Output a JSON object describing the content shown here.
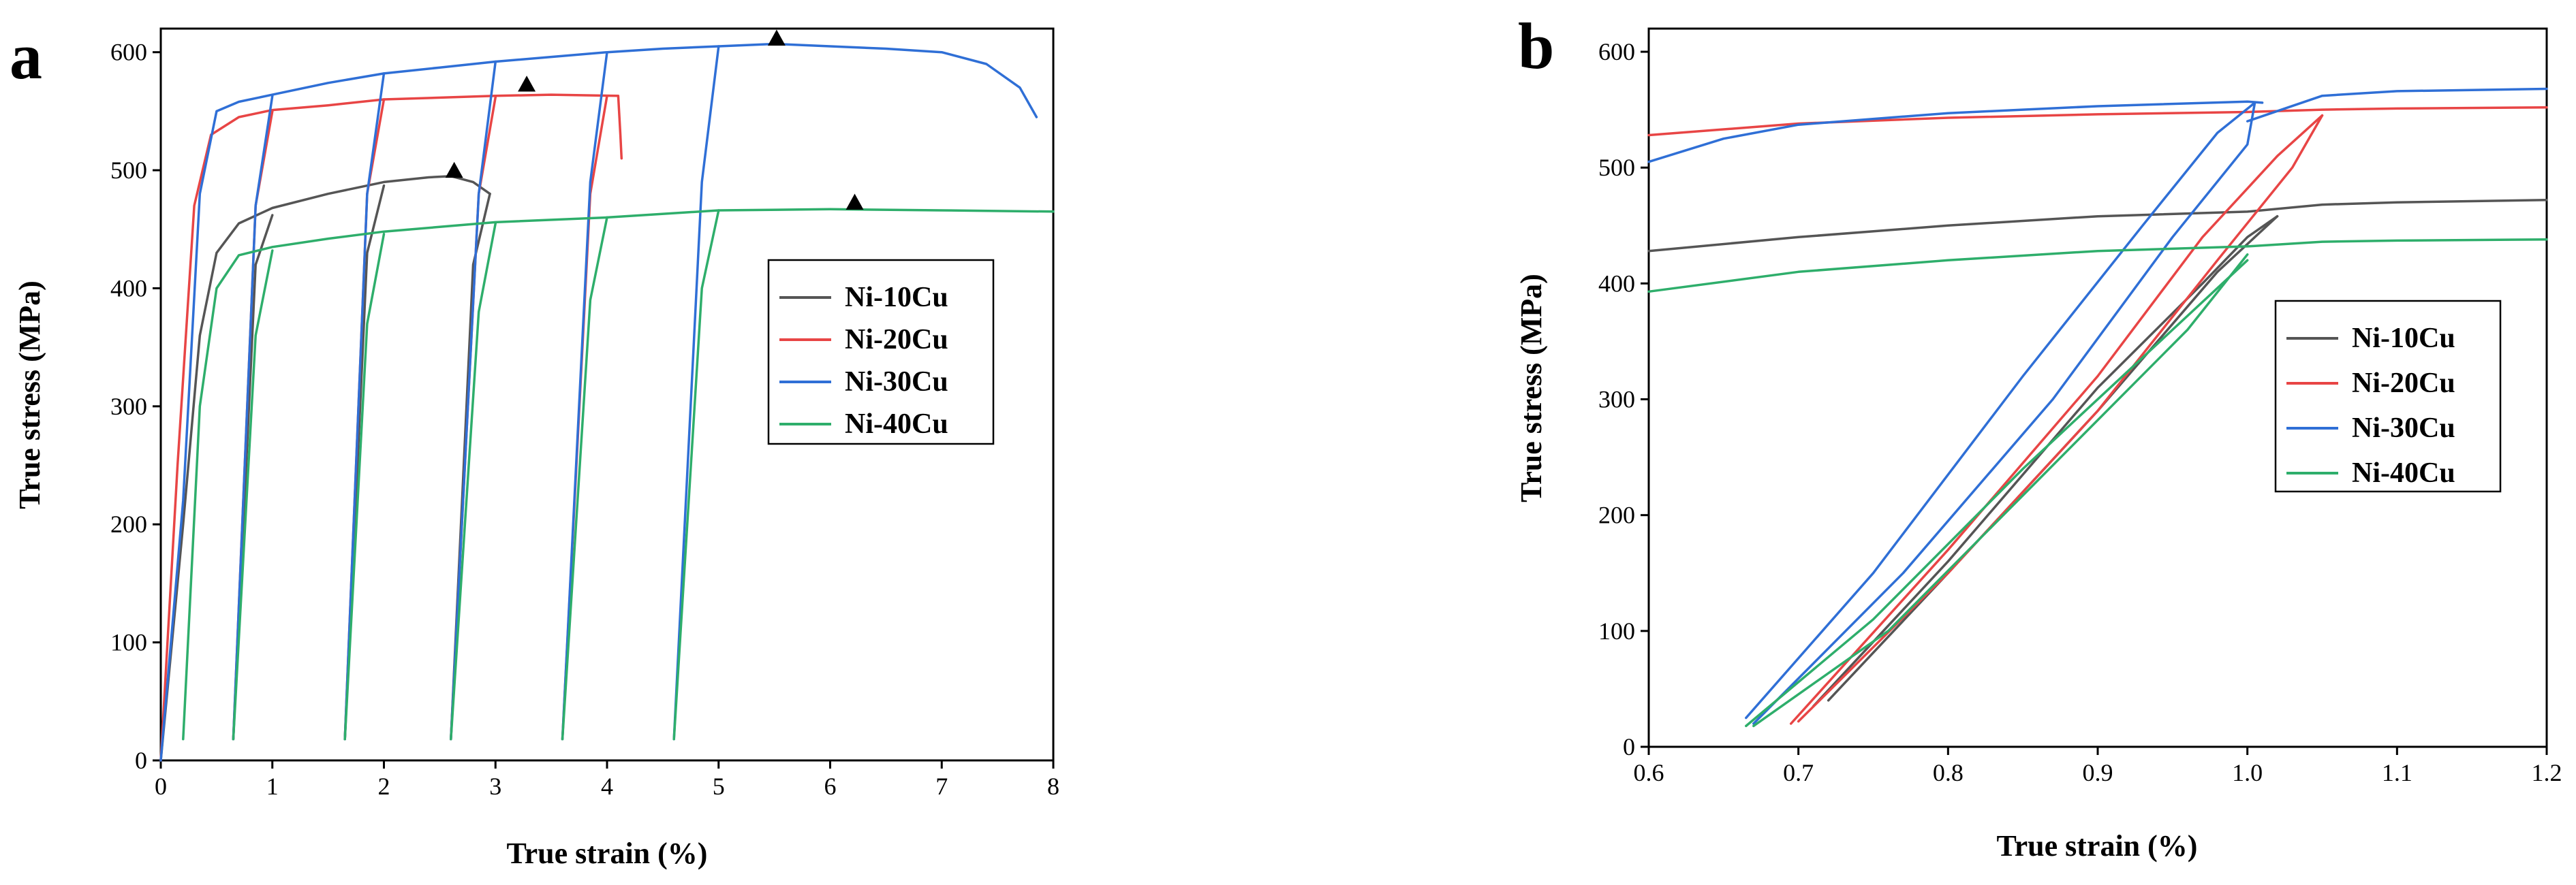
{
  "panels": [
    {
      "letter": "a",
      "chart_data": {
        "type": "line",
        "xlabel": "True strain (%)",
        "ylabel": "True stress (MPa)",
        "xlim": [
          0,
          8
        ],
        "ylim": [
          0,
          620
        ],
        "x_ticks": [
          0,
          1,
          2,
          3,
          4,
          5,
          6,
          7,
          8
        ],
        "y_ticks": [
          0,
          100,
          200,
          300,
          400,
          500,
          600
        ],
        "legend_position": "right-middle",
        "series": [
          {
            "name": "Ni-10Cu",
            "color": "#555555",
            "segments": [
              [
                [
                  0,
                  0
                ],
                [
                  0.2,
                  200
                ],
                [
                  0.35,
                  360
                ],
                [
                  0.5,
                  430
                ],
                [
                  0.7,
                  455
                ],
                [
                  1.0,
                  468
                ],
                [
                  1.5,
                  480
                ],
                [
                  2.0,
                  490
                ],
                [
                  2.4,
                  494
                ],
                [
                  2.6,
                  495
                ],
                [
                  2.8,
                  490
                ],
                [
                  2.95,
                  480
                ]
              ],
              [
                [
                  0.65,
                  18
                ],
                [
                  0.85,
                  420
                ],
                [
                  1.0,
                  462
                ]
              ],
              [
                [
                  1.65,
                  18
                ],
                [
                  1.85,
                  430
                ],
                [
                  2.0,
                  487
                ]
              ],
              [
                [
                  2.6,
                  18
                ],
                [
                  2.8,
                  420
                ],
                [
                  2.95,
                  480
                ]
              ]
            ]
          },
          {
            "name": "Ni-20Cu",
            "color": "#e84545",
            "segments": [
              [
                [
                  0,
                  0
                ],
                [
                  0.15,
                  250
                ],
                [
                  0.3,
                  470
                ],
                [
                  0.45,
                  530
                ],
                [
                  0.7,
                  545
                ],
                [
                  1.0,
                  551
                ],
                [
                  1.5,
                  555
                ],
                [
                  2.0,
                  560
                ],
                [
                  3.0,
                  563
                ],
                [
                  3.5,
                  564
                ],
                [
                  4.1,
                  563
                ],
                [
                  4.12,
                  530
                ],
                [
                  4.13,
                  510
                ]
              ],
              [
                [
                  0.65,
                  18
                ],
                [
                  0.85,
                  470
                ],
                [
                  1.0,
                  550
                ]
              ],
              [
                [
                  1.65,
                  18
                ],
                [
                  1.85,
                  480
                ],
                [
                  2.0,
                  560
                ]
              ],
              [
                [
                  2.6,
                  18
                ],
                [
                  2.85,
                  480
                ],
                [
                  3.0,
                  562
                ]
              ],
              [
                [
                  3.6,
                  18
                ],
                [
                  3.85,
                  480
                ],
                [
                  4.0,
                  563
                ]
              ]
            ]
          },
          {
            "name": "Ni-30Cu",
            "color": "#2f6fd6",
            "segments": [
              [
                [
                  0,
                  0
                ],
                [
                  0.2,
                  220
                ],
                [
                  0.35,
                  480
                ],
                [
                  0.5,
                  550
                ],
                [
                  0.7,
                  558
                ],
                [
                  1.0,
                  564
                ],
                [
                  1.5,
                  574
                ],
                [
                  2.0,
                  582
                ],
                [
                  2.5,
                  587
                ],
                [
                  3.0,
                  592
                ],
                [
                  3.5,
                  596
                ],
                [
                  4.0,
                  600
                ],
                [
                  4.5,
                  603
                ],
                [
                  5.0,
                  605
                ],
                [
                  5.5,
                  607
                ],
                [
                  6.0,
                  605
                ],
                [
                  6.5,
                  603
                ],
                [
                  7.0,
                  600
                ],
                [
                  7.4,
                  590
                ],
                [
                  7.7,
                  570
                ],
                [
                  7.85,
                  545
                ]
              ],
              [
                [
                  0.65,
                  18
                ],
                [
                  0.85,
                  470
                ],
                [
                  1.0,
                  563
                ]
              ],
              [
                [
                  1.65,
                  18
                ],
                [
                  1.85,
                  480
                ],
                [
                  2.0,
                  582
                ]
              ],
              [
                [
                  2.6,
                  18
                ],
                [
                  2.85,
                  480
                ],
                [
                  3.0,
                  592
                ]
              ],
              [
                [
                  3.6,
                  18
                ],
                [
                  3.85,
                  490
                ],
                [
                  4.0,
                  600
                ]
              ],
              [
                [
                  4.6,
                  18
                ],
                [
                  4.85,
                  490
                ],
                [
                  5.0,
                  605
                ]
              ]
            ]
          },
          {
            "name": "Ni-40Cu",
            "color": "#2eae6b",
            "segments": [
              [
                [
                  0.2,
                  18
                ],
                [
                  0.35,
                  300
                ],
                [
                  0.5,
                  400
                ],
                [
                  0.7,
                  428
                ],
                [
                  1.0,
                  435
                ],
                [
                  1.5,
                  442
                ],
                [
                  2.0,
                  448
                ],
                [
                  2.5,
                  452
                ],
                [
                  3.0,
                  456
                ],
                [
                  4.0,
                  460
                ],
                [
                  5.0,
                  466
                ],
                [
                  6.0,
                  467
                ],
                [
                  7.0,
                  466
                ],
                [
                  8.0,
                  465
                ]
              ],
              [
                [
                  0.65,
                  18
                ],
                [
                  0.85,
                  360
                ],
                [
                  1.0,
                  432
                ]
              ],
              [
                [
                  1.65,
                  18
                ],
                [
                  1.85,
                  370
                ],
                [
                  2.0,
                  446
                ]
              ],
              [
                [
                  2.6,
                  18
                ],
                [
                  2.85,
                  380
                ],
                [
                  3.0,
                  455
                ]
              ],
              [
                [
                  3.6,
                  18
                ],
                [
                  3.85,
                  390
                ],
                [
                  4.0,
                  460
                ]
              ],
              [
                [
                  4.6,
                  18
                ],
                [
                  4.85,
                  400
                ],
                [
                  5.0,
                  466
                ]
              ]
            ]
          }
        ],
        "markers": [
          {
            "x": 2.63,
            "y": 495,
            "symbol": "triangle"
          },
          {
            "x": 3.28,
            "y": 568,
            "symbol": "triangle"
          },
          {
            "x": 5.52,
            "y": 607,
            "symbol": "triangle"
          },
          {
            "x": 6.22,
            "y": 468,
            "symbol": "triangle"
          }
        ]
      }
    },
    {
      "letter": "b",
      "chart_data": {
        "type": "line",
        "xlabel": "True strain (%)",
        "ylabel": "True stress (MPa)",
        "xlim": [
          0.6,
          1.2
        ],
        "ylim": [
          0,
          620
        ],
        "x_ticks": [
          0.6,
          0.7,
          0.8,
          0.9,
          1.0,
          1.1,
          1.2
        ],
        "y_ticks": [
          0,
          100,
          200,
          300,
          400,
          500,
          600
        ],
        "legend_position": "right-middle",
        "series": [
          {
            "name": "Ni-10Cu",
            "color": "#555555",
            "segments": [
              [
                [
                  0.6,
                  428
                ],
                [
                  0.7,
                  440
                ],
                [
                  0.8,
                  450
                ],
                [
                  0.9,
                  458
                ],
                [
                  1.0,
                  462
                ],
                [
                  1.05,
                  468
                ],
                [
                  1.1,
                  470
                ],
                [
                  1.2,
                  472
                ]
              ],
              [
                [
                  0.71,
                  35
                ],
                [
                  0.8,
                  160
                ],
                [
                  0.9,
                  310
                ],
                [
                  0.97,
                  400
                ],
                [
                  1.0,
                  440
                ],
                [
                  1.02,
                  458
                ]
              ],
              [
                [
                  0.72,
                  40
                ],
                [
                  0.8,
                  150
                ],
                [
                  0.9,
                  290
                ],
                [
                  0.98,
                  410
                ],
                [
                  1.02,
                  458
                ]
              ]
            ]
          },
          {
            "name": "Ni-20Cu",
            "color": "#e84545",
            "segments": [
              [
                [
                  0.6,
                  528
                ],
                [
                  0.7,
                  538
                ],
                [
                  0.8,
                  543
                ],
                [
                  0.9,
                  546
                ],
                [
                  1.0,
                  548
                ],
                [
                  1.05,
                  550
                ],
                [
                  1.1,
                  551
                ],
                [
                  1.2,
                  552
                ]
              ],
              [
                [
                  0.695,
                  20
                ],
                [
                  0.8,
                  170
                ],
                [
                  0.9,
                  320
                ],
                [
                  0.97,
                  440
                ],
                [
                  1.02,
                  510
                ],
                [
                  1.05,
                  545
                ]
              ],
              [
                [
                  0.7,
                  22
                ],
                [
                  0.8,
                  150
                ],
                [
                  0.9,
                  290
                ],
                [
                  0.98,
                  420
                ],
                [
                  1.03,
                  500
                ],
                [
                  1.05,
                  545
                ]
              ]
            ]
          },
          {
            "name": "Ni-30Cu",
            "color": "#2f6fd6",
            "segments": [
              [
                [
                  0.6,
                  505
                ],
                [
                  0.65,
                  525
                ],
                [
                  0.7,
                  537
                ],
                [
                  0.8,
                  547
                ],
                [
                  0.9,
                  553
                ],
                [
                  1.0,
                  557
                ],
                [
                  1.01,
                  556
                ]
              ],
              [
                [
                  1.0,
                  540
                ],
                [
                  1.05,
                  562
                ],
                [
                  1.1,
                  566
                ],
                [
                  1.2,
                  568
                ]
              ],
              [
                [
                  0.665,
                  25
                ],
                [
                  0.75,
                  150
                ],
                [
                  0.85,
                  320
                ],
                [
                  0.93,
                  450
                ],
                [
                  0.98,
                  530
                ],
                [
                  1.005,
                  556
                ]
              ],
              [
                [
                  0.67,
                  20
                ],
                [
                  0.77,
                  150
                ],
                [
                  0.87,
                  300
                ],
                [
                  0.95,
                  440
                ],
                [
                  1.0,
                  520
                ],
                [
                  1.005,
                  556
                ]
              ]
            ]
          },
          {
            "name": "Ni-40Cu",
            "color": "#2eae6b",
            "segments": [
              [
                [
                  0.6,
                  393
                ],
                [
                  0.7,
                  410
                ],
                [
                  0.8,
                  420
                ],
                [
                  0.9,
                  428
                ],
                [
                  1.0,
                  432
                ],
                [
                  1.05,
                  436
                ],
                [
                  1.1,
                  437
                ],
                [
                  1.2,
                  438
                ]
              ],
              [
                [
                  0.665,
                  18
                ],
                [
                  0.75,
                  110
                ],
                [
                  0.85,
                  240
                ],
                [
                  0.95,
                  360
                ],
                [
                  1.0,
                  420
                ]
              ],
              [
                [
                  0.67,
                  18
                ],
                [
                  0.76,
                  100
                ],
                [
                  0.86,
                  230
                ],
                [
                  0.96,
                  360
                ],
                [
                  1.0,
                  425
                ]
              ]
            ]
          }
        ],
        "markers": []
      }
    }
  ]
}
